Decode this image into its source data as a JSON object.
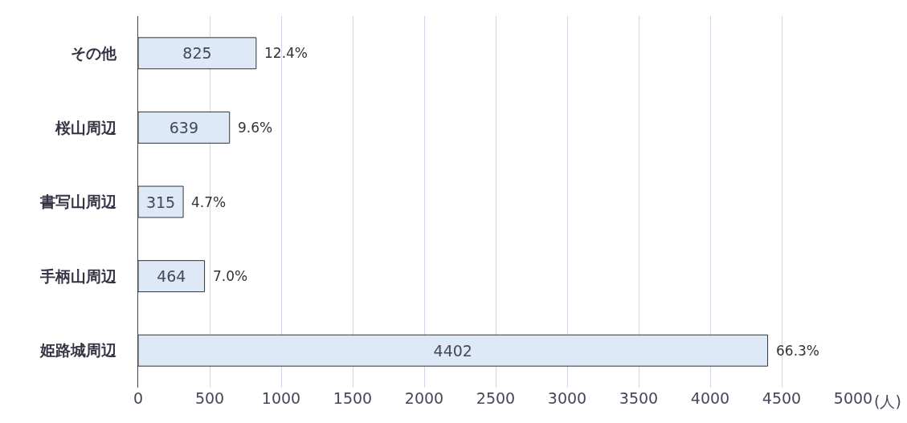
{
  "chart_data": {
    "type": "bar",
    "orientation": "horizontal",
    "categories": [
      "その他",
      "桜山周辺",
      "書写山周辺",
      "手柄山周辺",
      "姫路城周辺"
    ],
    "values": [
      825,
      639,
      315,
      464,
      4402
    ],
    "data_labels": true,
    "annotations": [
      {
        "text": "12.4%",
        "x": 825,
        "y": "その他"
      },
      {
        "text": "9.6%",
        "x": 639,
        "y": "桜山周辺"
      },
      {
        "text": "4.7%",
        "x": 315,
        "y": "書写山周辺"
      },
      {
        "text": "7.0%",
        "x": 464,
        "y": "手柄山周辺"
      },
      {
        "text": "66.3%",
        "x": 4402,
        "y": "姫路城周辺"
      }
    ],
    "color": "#dde9f6",
    "xlabel": "(人)",
    "xlim": [
      0,
      5000
    ],
    "xticks": [
      0,
      500,
      1000,
      1500,
      2000,
      2500,
      3000,
      3500,
      4000,
      4500,
      5000
    ],
    "grid": "x"
  }
}
